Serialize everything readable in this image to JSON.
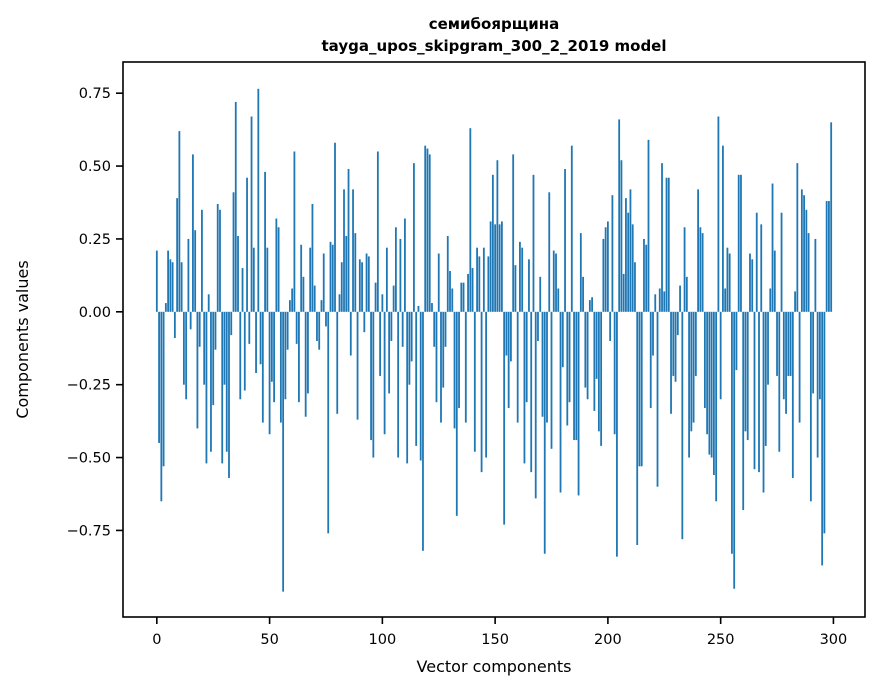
{
  "chart_data": {
    "type": "bar",
    "title_lines": [
      "семибоярщина",
      "tayga_upos_skipgram_300_2_2019 model"
    ],
    "xlabel": "Vector components",
    "ylabel": "Components values",
    "bar_color": "#1f77b4",
    "axis_color": "#000000",
    "x_start": 0,
    "x_ticks": [
      0,
      50,
      100,
      150,
      200,
      250,
      300
    ],
    "x_tick_labels": [
      "0",
      "50",
      "100",
      "150",
      "200",
      "250",
      "300"
    ],
    "y_ticks": [
      0.75,
      0.5,
      0.25,
      0.0,
      -0.25,
      -0.5,
      -0.75
    ],
    "y_tick_labels": [
      "0.75",
      "0.50",
      "0.25",
      "0.00",
      "−0.25",
      "−0.50",
      "−0.75"
    ],
    "xlim": [
      -15,
      314
    ],
    "ylim": [
      -1.047,
      0.857
    ],
    "grid": false,
    "legend": null,
    "values": [
      0.21,
      -0.45,
      -0.65,
      -0.53,
      0.03,
      0.21,
      0.18,
      0.17,
      -0.09,
      0.39,
      0.62,
      0.17,
      -0.25,
      -0.3,
      0.25,
      -0.06,
      0.54,
      0.28,
      -0.4,
      -0.12,
      0.35,
      -0.25,
      -0.52,
      0.06,
      -0.48,
      -0.32,
      -0.13,
      0.37,
      0.35,
      -0.52,
      -0.25,
      -0.48,
      -0.57,
      -0.08,
      0.41,
      0.72,
      0.26,
      -0.3,
      0.15,
      -0.27,
      0.46,
      -0.11,
      0.67,
      0.22,
      -0.21,
      0.765,
      -0.18,
      -0.38,
      0.48,
      0.22,
      -0.42,
      -0.24,
      -0.31,
      0.32,
      0.29,
      -0.38,
      -0.96,
      -0.3,
      -0.13,
      0.04,
      0.08,
      0.55,
      -0.11,
      -0.31,
      0.23,
      0.12,
      -0.36,
      -0.28,
      0.22,
      0.37,
      0.09,
      -0.1,
      -0.13,
      0.04,
      0.2,
      -0.05,
      -0.76,
      0.24,
      0.23,
      0.58,
      -0.35,
      0.06,
      0.17,
      0.42,
      0.26,
      0.49,
      -0.15,
      0.42,
      0.27,
      -0.37,
      0.18,
      0.17,
      -0.07,
      0.2,
      0.19,
      -0.44,
      -0.5,
      0.1,
      0.55,
      -0.22,
      0.06,
      -0.42,
      0.22,
      -0.28,
      -0.1,
      0.09,
      0.29,
      -0.5,
      0.25,
      -0.12,
      0.32,
      -0.52,
      -0.25,
      -0.17,
      0.51,
      -0.46,
      0.02,
      -0.51,
      -0.82,
      0.57,
      0.56,
      0.54,
      0.03,
      -0.12,
      -0.31,
      0.2,
      -0.38,
      -0.26,
      -0.12,
      0.26,
      0.14,
      0.08,
      -0.4,
      -0.7,
      -0.33,
      0.1,
      0.1,
      -0.38,
      0.13,
      0.63,
      0.15,
      -0.48,
      0.22,
      0.19,
      -0.55,
      0.22,
      -0.5,
      0.19,
      0.31,
      0.47,
      0.3,
      0.52,
      0.3,
      0.31,
      -0.73,
      -0.15,
      -0.33,
      -0.17,
      0.54,
      0.16,
      -0.38,
      0.24,
      0.22,
      -0.52,
      -0.31,
      0.18,
      -0.55,
      0.47,
      -0.64,
      -0.1,
      0.12,
      -0.36,
      -0.83,
      -0.38,
      0.41,
      -0.47,
      0.21,
      0.2,
      0.08,
      -0.62,
      -0.19,
      0.49,
      -0.39,
      -0.31,
      0.57,
      -0.44,
      -0.44,
      -0.63,
      0.27,
      0.12,
      -0.26,
      -0.3,
      0.04,
      0.05,
      -0.34,
      -0.23,
      -0.41,
      -0.46,
      0.25,
      0.29,
      0.31,
      -0.1,
      0.4,
      -0.42,
      -0.84,
      0.66,
      0.52,
      0.13,
      0.39,
      0.34,
      0.42,
      0.3,
      0.17,
      -0.8,
      -0.53,
      -0.53,
      0.25,
      0.23,
      0.59,
      -0.33,
      -0.15,
      0.06,
      -0.6,
      0.08,
      0.51,
      0.07,
      0.46,
      0.46,
      -0.35,
      -0.22,
      -0.24,
      -0.08,
      0.09,
      -0.78,
      0.29,
      0.12,
      -0.5,
      -0.41,
      -0.38,
      -0.22,
      0.42,
      0.29,
      0.27,
      -0.33,
      -0.42,
      -0.49,
      -0.5,
      -0.56,
      -0.65,
      0.67,
      -0.3,
      0.57,
      0.08,
      0.22,
      0.2,
      -0.83,
      -0.95,
      -0.2,
      0.47,
      0.47,
      -0.68,
      -0.41,
      -0.44,
      0.2,
      0.18,
      -0.54,
      0.34,
      -0.55,
      0.3,
      -0.62,
      -0.46,
      -0.25,
      0.08,
      0.44,
      0.21,
      -0.22,
      -0.48,
      0.34,
      -0.3,
      -0.35,
      -0.22,
      -0.22,
      -0.57,
      0.07,
      0.51,
      -0.38,
      0.42,
      0.4,
      0.35,
      0.27,
      -0.65,
      -0.28,
      0.25,
      -0.5,
      -0.3,
      -0.87,
      -0.76,
      0.38,
      0.38,
      0.65
    ]
  }
}
